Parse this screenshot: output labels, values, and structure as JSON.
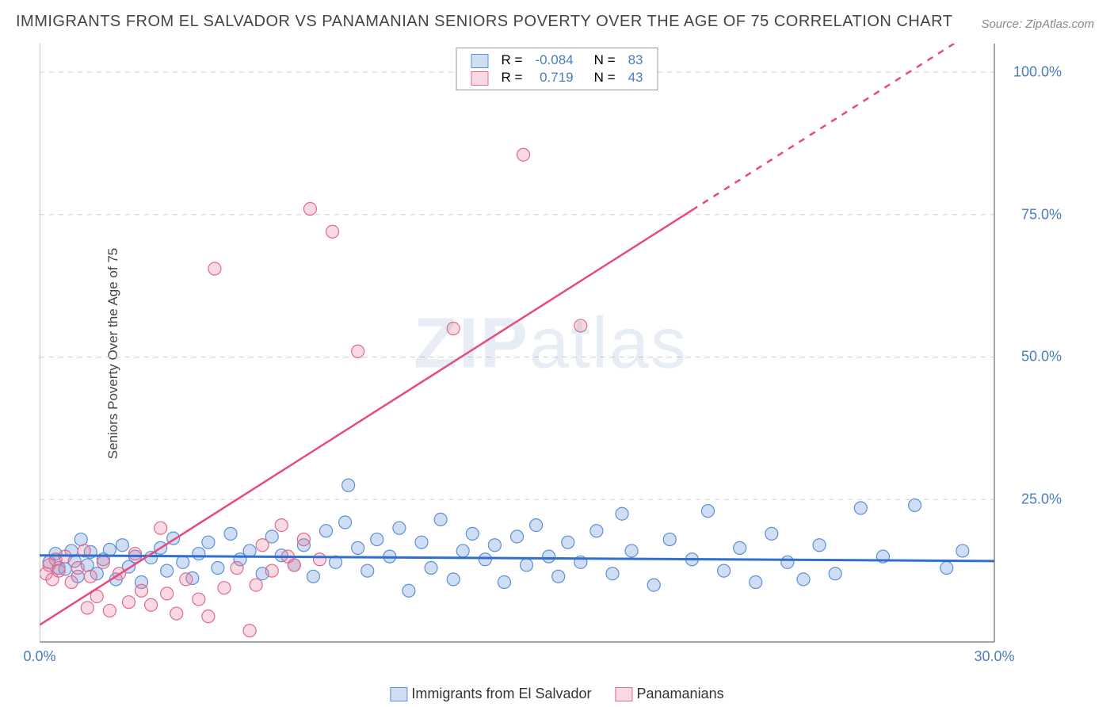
{
  "title": "IMMIGRANTS FROM EL SALVADOR VS PANAMANIAN SENIORS POVERTY OVER THE AGE OF 75 CORRELATION CHART",
  "source": "Source: ZipAtlas.com",
  "watermark_bold": "ZIP",
  "watermark_light": "atlas",
  "yaxis_label": "Seniors Poverty Over the Age of 75",
  "chart": {
    "type": "scatter-correlation",
    "background_color": "#ffffff",
    "grid_color": "#d0d0d0",
    "axis_color": "#888888",
    "xlim": [
      0,
      30
    ],
    "ylim": [
      0,
      105
    ],
    "xticks": [
      {
        "v": 0,
        "l": "0.0%"
      },
      {
        "v": 30,
        "l": "30.0%"
      }
    ],
    "yticks": [
      {
        "v": 25,
        "l": "25.0%"
      },
      {
        "v": 50,
        "l": "50.0%"
      },
      {
        "v": 75,
        "l": "75.0%"
      },
      {
        "v": 100,
        "l": "100.0%"
      }
    ],
    "right_axis_pad": 85,
    "bottom_axis_pad": 35,
    "series": [
      {
        "name": "Immigrants from El Salvador",
        "fill": "rgba(120,160,220,0.35)",
        "stroke": "#5b8fd6",
        "stroke_width": 1.2,
        "marker_radius": 8,
        "trend": {
          "slope": -0.033,
          "intercept": 15.2,
          "color": "#2f6fd0",
          "width": 3,
          "dash": "none"
        },
        "R": "-0.084",
        "N": "83",
        "points": [
          [
            0.3,
            14.0
          ],
          [
            0.5,
            15.5
          ],
          [
            0.6,
            13.0
          ],
          [
            0.8,
            12.8
          ],
          [
            1.0,
            16.0
          ],
          [
            1.1,
            14.2
          ],
          [
            1.2,
            11.5
          ],
          [
            1.3,
            18.0
          ],
          [
            1.5,
            13.5
          ],
          [
            1.6,
            15.8
          ],
          [
            1.8,
            12.0
          ],
          [
            2.0,
            14.5
          ],
          [
            2.2,
            16.2
          ],
          [
            2.4,
            11.0
          ],
          [
            2.6,
            17.0
          ],
          [
            2.8,
            13.2
          ],
          [
            3.0,
            15.0
          ],
          [
            3.2,
            10.5
          ],
          [
            3.5,
            14.8
          ],
          [
            3.8,
            16.5
          ],
          [
            4.0,
            12.5
          ],
          [
            4.2,
            18.2
          ],
          [
            4.5,
            14.0
          ],
          [
            4.8,
            11.2
          ],
          [
            5.0,
            15.5
          ],
          [
            5.3,
            17.5
          ],
          [
            5.6,
            13.0
          ],
          [
            6.0,
            19.0
          ],
          [
            6.3,
            14.5
          ],
          [
            6.6,
            16.0
          ],
          [
            7.0,
            12.0
          ],
          [
            7.3,
            18.5
          ],
          [
            7.6,
            15.2
          ],
          [
            8.0,
            13.5
          ],
          [
            8.3,
            17.0
          ],
          [
            8.6,
            11.5
          ],
          [
            9.0,
            19.5
          ],
          [
            9.3,
            14.0
          ],
          [
            9.6,
            21.0
          ],
          [
            9.7,
            27.5
          ],
          [
            10.0,
            16.5
          ],
          [
            10.3,
            12.5
          ],
          [
            10.6,
            18.0
          ],
          [
            11.0,
            15.0
          ],
          [
            11.3,
            20.0
          ],
          [
            11.6,
            9.0
          ],
          [
            12.0,
            17.5
          ],
          [
            12.3,
            13.0
          ],
          [
            12.6,
            21.5
          ],
          [
            13.0,
            11.0
          ],
          [
            13.3,
            16.0
          ],
          [
            13.6,
            19.0
          ],
          [
            14.0,
            14.5
          ],
          [
            14.3,
            17.0
          ],
          [
            14.6,
            10.5
          ],
          [
            15.0,
            18.5
          ],
          [
            15.3,
            13.5
          ],
          [
            15.6,
            20.5
          ],
          [
            16.0,
            15.0
          ],
          [
            16.3,
            11.5
          ],
          [
            16.6,
            17.5
          ],
          [
            17.0,
            14.0
          ],
          [
            17.5,
            19.5
          ],
          [
            18.0,
            12.0
          ],
          [
            18.3,
            22.5
          ],
          [
            18.6,
            16.0
          ],
          [
            19.3,
            10.0
          ],
          [
            19.8,
            18.0
          ],
          [
            20.5,
            14.5
          ],
          [
            21.0,
            23.0
          ],
          [
            21.5,
            12.5
          ],
          [
            22.0,
            16.5
          ],
          [
            22.5,
            10.5
          ],
          [
            23.0,
            19.0
          ],
          [
            23.5,
            14.0
          ],
          [
            24.0,
            11.0
          ],
          [
            24.5,
            17.0
          ],
          [
            25.0,
            12.0
          ],
          [
            25.8,
            23.5
          ],
          [
            26.5,
            15.0
          ],
          [
            27.5,
            24.0
          ],
          [
            28.5,
            13.0
          ],
          [
            29.0,
            16.0
          ]
        ]
      },
      {
        "name": "Panamanians",
        "fill": "rgba(235,130,160,0.30)",
        "stroke": "#e06a8f",
        "stroke_width": 1.2,
        "marker_radius": 8,
        "trend": {
          "slope": 3.55,
          "intercept": 3.0,
          "color": "#e84a7a",
          "width": 2.5,
          "dash": "none",
          "dash_after_x": 20.5
        },
        "R": "0.719",
        "N": "43",
        "points": [
          [
            0.2,
            12.0
          ],
          [
            0.3,
            13.5
          ],
          [
            0.4,
            11.0
          ],
          [
            0.5,
            14.5
          ],
          [
            0.6,
            12.5
          ],
          [
            0.8,
            15.0
          ],
          [
            1.0,
            10.5
          ],
          [
            1.2,
            13.0
          ],
          [
            1.4,
            16.0
          ],
          [
            1.5,
            6.0
          ],
          [
            1.6,
            11.5
          ],
          [
            1.8,
            8.0
          ],
          [
            2.0,
            14.0
          ],
          [
            2.2,
            5.5
          ],
          [
            2.5,
            12.0
          ],
          [
            2.8,
            7.0
          ],
          [
            3.0,
            15.5
          ],
          [
            3.2,
            9.0
          ],
          [
            3.5,
            6.5
          ],
          [
            3.8,
            20.0
          ],
          [
            4.0,
            8.5
          ],
          [
            4.3,
            5.0
          ],
          [
            4.6,
            11.0
          ],
          [
            5.0,
            7.5
          ],
          [
            5.3,
            4.5
          ],
          [
            5.8,
            9.5
          ],
          [
            6.2,
            13.0
          ],
          [
            6.6,
            2.0
          ],
          [
            7.0,
            17.0
          ],
          [
            7.3,
            12.5
          ],
          [
            7.6,
            20.5
          ],
          [
            5.5,
            65.5
          ],
          [
            8.0,
            13.5
          ],
          [
            8.3,
            18.0
          ],
          [
            8.5,
            76.0
          ],
          [
            8.8,
            14.5
          ],
          [
            9.2,
            72.0
          ],
          [
            10.0,
            51.0
          ],
          [
            13.0,
            55.0
          ],
          [
            15.2,
            85.5
          ],
          [
            17.0,
            55.5
          ],
          [
            7.8,
            15.0
          ],
          [
            6.8,
            10.0
          ]
        ]
      }
    ]
  },
  "legend_top": {
    "rows": [
      {
        "swatch_fill": "rgba(120,160,220,0.35)",
        "swatch_stroke": "#5b8fd6",
        "R": "-0.084",
        "N": "83"
      },
      {
        "swatch_fill": "rgba(235,130,160,0.30)",
        "swatch_stroke": "#e06a8f",
        "R": "0.719",
        "N": "43"
      }
    ],
    "R_label": "R =",
    "N_label": "N ="
  },
  "legend_bottom": {
    "items": [
      {
        "swatch_fill": "rgba(120,160,220,0.35)",
        "swatch_stroke": "#5b8fd6",
        "label": "Immigrants from El Salvador"
      },
      {
        "swatch_fill": "rgba(235,130,160,0.30)",
        "swatch_stroke": "#e06a8f",
        "label": "Panamanians"
      }
    ]
  }
}
